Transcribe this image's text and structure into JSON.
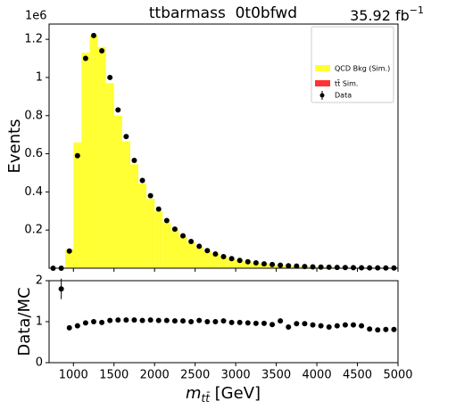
{
  "chart_data": [
    {
      "type": "histogram",
      "title": "ttbarmass  0t0bfwd",
      "lumi": {
        "text": "35.92 fb",
        "sup": "−1"
      },
      "ylabel": "Events",
      "offset_text": "1e6",
      "bins": [
        700,
        800,
        900,
        1000,
        1100,
        1200,
        1300,
        1400,
        1500,
        1600,
        1700,
        1800,
        1900,
        2000,
        2100,
        2200,
        2300,
        2400,
        2500,
        2600,
        2700,
        2800,
        2900,
        3000,
        3100,
        3200,
        3300,
        3400,
        3500,
        3600,
        3700,
        3800,
        3900,
        4000,
        4100,
        4200,
        4300,
        4400,
        4500,
        4600,
        4700,
        4800,
        4900,
        5000
      ],
      "series": [
        {
          "name": "QCD Bkg (Sim.)",
          "color": "#ffff33",
          "style": "stack",
          "values": [
            0,
            0.001,
            0.1,
            0.66,
            1.13,
            1.22,
            1.16,
            0.97,
            0.8,
            0.665,
            0.545,
            0.445,
            0.365,
            0.3,
            0.24,
            0.2,
            0.165,
            0.135,
            0.11,
            0.09,
            0.075,
            0.06,
            0.05,
            0.042,
            0.035,
            0.029,
            0.025,
            0.02,
            0.016,
            0.015,
            0.012,
            0.0095,
            0.0075,
            0.0065,
            0.0057,
            0.0045,
            0.0039,
            0.0033,
            0.0028,
            0.0024,
            0.0021,
            0.0017,
            0.0015
          ]
        },
        {
          "name": "tt̄ Sim.",
          "color": "#ff3333",
          "style": "stack",
          "values": [
            0,
            0,
            0,
            0,
            0,
            0,
            0,
            0,
            0,
            0,
            0,
            0,
            0,
            0,
            0,
            0,
            0,
            0,
            0,
            0,
            0,
            0,
            0,
            0,
            0,
            0,
            0,
            0,
            0,
            0,
            0,
            0,
            0,
            0,
            0,
            0,
            0,
            0,
            0,
            0,
            0,
            0,
            0
          ]
        },
        {
          "name": "Data",
          "color": "#000000",
          "style": "points",
          "values": [
            0,
            0,
            0.09,
            0.59,
            1.1,
            1.22,
            1.14,
            1.0,
            0.83,
            0.69,
            0.565,
            0.46,
            0.38,
            0.31,
            0.25,
            0.205,
            0.17,
            0.14,
            0.115,
            0.092,
            0.075,
            0.061,
            0.05,
            0.041,
            0.034,
            0.028,
            0.023,
            0.019,
            0.016,
            0.013,
            0.011,
            0.009,
            0.007,
            0.006,
            0.005,
            0.004,
            0.0035,
            0.003,
            0.0025,
            0.002,
            0.0017,
            0.0014,
            0.0012
          ]
        }
      ],
      "xlim": [
        700,
        5000
      ],
      "xticks": [
        1000,
        1500,
        2000,
        2500,
        3000,
        3500,
        4000,
        4500,
        5000
      ],
      "ylim": [
        0,
        1.28
      ],
      "yticks": [
        0.2,
        0.4,
        0.6,
        0.8,
        1.0,
        1.2
      ]
    },
    {
      "type": "ratio",
      "ylabel": "Data/MC",
      "xlabel": {
        "main": "m",
        "sub": "tt̄",
        "unit": " [GeV]"
      },
      "x": [
        750,
        850,
        950,
        1050,
        1150,
        1250,
        1350,
        1450,
        1550,
        1650,
        1750,
        1850,
        1950,
        2050,
        2150,
        2250,
        2350,
        2450,
        2550,
        2650,
        2750,
        2850,
        2950,
        3050,
        3150,
        3250,
        3350,
        3450,
        3550,
        3650,
        3750,
        3850,
        3950,
        4050,
        4150,
        4250,
        4350,
        4450,
        4550,
        4650,
        4750,
        4850,
        4950
      ],
      "values": [
        null,
        1.8,
        0.85,
        0.9,
        0.97,
        1.0,
        0.98,
        1.03,
        1.04,
        1.04,
        1.04,
        1.03,
        1.04,
        1.03,
        1.03,
        1.02,
        1.02,
        1.0,
        1.03,
        1.0,
        1.0,
        1.02,
        0.98,
        0.98,
        0.97,
        0.96,
        0.96,
        0.93,
        1.02,
        0.87,
        0.95,
        0.95,
        0.92,
        0.9,
        0.87,
        0.9,
        0.92,
        0.92,
        0.9,
        0.82,
        0.8,
        0.81,
        0.81
      ],
      "errors": [
        null,
        0.25,
        0.02,
        0.01,
        0.01,
        0.01,
        0.01,
        0.01,
        0.01,
        0.01,
        0.01,
        0.01,
        0.01,
        0.01,
        0.01,
        0.01,
        0.01,
        0.01,
        0.01,
        0.01,
        0.02,
        0.02,
        0.02,
        0.02,
        0.02,
        0.02,
        0.02,
        0.02,
        0.03,
        0.03,
        0.03,
        0.03,
        0.03,
        0.03,
        0.03,
        0.03,
        0.03,
        0.03,
        0.03,
        0.03,
        0.03,
        0.03,
        0.03
      ],
      "color": "#000000",
      "xlim": [
        700,
        5000
      ],
      "xticks": [
        1000,
        1500,
        2000,
        2500,
        3000,
        3500,
        4000,
        4500,
        5000
      ],
      "ylim": [
        0,
        2
      ],
      "yticks": [
        0,
        1,
        2
      ]
    }
  ]
}
